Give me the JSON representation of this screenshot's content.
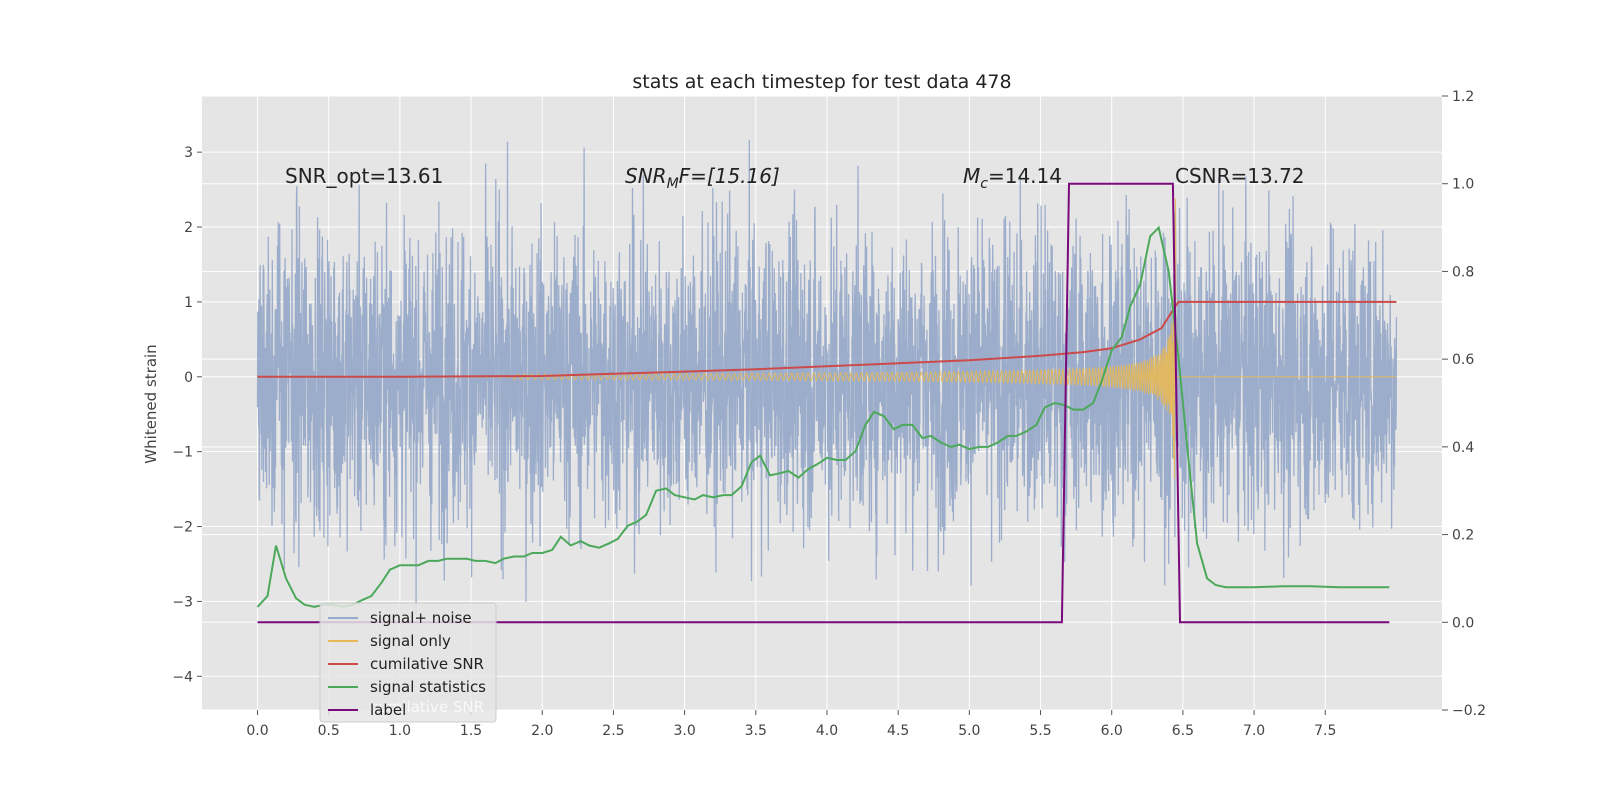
{
  "chart_data": {
    "type": "line",
    "title": "stats at each timestep for test data 478",
    "ylabel": "Whitened strain",
    "xlabel": "",
    "xlim": [
      -0.39,
      8.32
    ],
    "ylim": [
      -4.45,
      3.75
    ],
    "y2lim": [
      -0.2,
      1.2
    ],
    "x_ticks": [
      "0.0",
      "0.5",
      "1.0",
      "1.5",
      "2.0",
      "2.5",
      "3.0",
      "3.5",
      "4.0",
      "4.5",
      "5.0",
      "5.5",
      "6.0",
      "6.5",
      "7.0",
      "7.5"
    ],
    "y_ticks": [
      "3",
      "2",
      "1",
      "0",
      "−1",
      "−2",
      "−3",
      "−4"
    ],
    "y2_ticks": [
      "1.2",
      "1.0",
      "0.8",
      "0.6",
      "0.4",
      "0.2",
      "0.0",
      "−0.2"
    ],
    "grid": true,
    "legend_position": "lower-left",
    "colors": {
      "background": "#e5e5e5",
      "grid": "#ffffff",
      "signal_noise": "#98aac9",
      "signal_only": "#e8b856",
      "cumulative_snr": "#cc4a4a",
      "signal_statistics": "#4ca85a",
      "label": "#7a0a7a"
    },
    "annotations": {
      "snr_opt": "SNR_opt=13.61",
      "snr_mf_main": "SNR",
      "snr_mf_sub": "M",
      "snr_mf_rest": "F=[15.16]",
      "mc_main": "M",
      "mc_sub": "c",
      "mc_rest": "=14.14",
      "csnr": "CSNR=13.72",
      "legend_ghost": "cumilative SNR"
    },
    "series": [
      {
        "name": "signal+ noise",
        "color": "#98aac9",
        "noise_std": 1.0,
        "t_start": 0.0,
        "t_end": 8.0
      },
      {
        "name": "signal only",
        "color": "#e8b856",
        "peak_amplitude": 2.6,
        "merger_time": 6.45
      },
      {
        "name": "cumilative SNR",
        "x": [
          0.0,
          1.0,
          2.0,
          2.5,
          3.0,
          3.5,
          4.0,
          4.5,
          5.0,
          5.5,
          5.8,
          6.0,
          6.2,
          6.35,
          6.45,
          6.47,
          8.0
        ],
        "y": [
          0.0,
          0.0,
          0.01,
          0.04,
          0.07,
          0.1,
          0.14,
          0.18,
          0.22,
          0.28,
          0.33,
          0.38,
          0.5,
          0.65,
          0.95,
          1.0,
          1.0
        ]
      },
      {
        "name": "signal statistics",
        "axis": "right",
        "x": [
          0.0,
          0.07,
          0.13,
          0.2,
          0.27,
          0.33,
          0.4,
          0.47,
          0.53,
          0.6,
          0.67,
          0.73,
          0.8,
          0.87,
          0.93,
          1.0,
          1.07,
          1.13,
          1.2,
          1.27,
          1.33,
          1.4,
          1.47,
          1.53,
          1.6,
          1.67,
          1.73,
          1.8,
          1.87,
          1.93,
          2.0,
          2.07,
          2.13,
          2.2,
          2.27,
          2.33,
          2.4,
          2.47,
          2.53,
          2.6,
          2.67,
          2.73,
          2.8,
          2.87,
          2.93,
          3.0,
          3.07,
          3.13,
          3.2,
          3.27,
          3.33,
          3.4,
          3.47,
          3.53,
          3.6,
          3.67,
          3.73,
          3.8,
          3.87,
          3.93,
          4.0,
          4.07,
          4.13,
          4.2,
          4.27,
          4.33,
          4.4,
          4.47,
          4.53,
          4.6,
          4.67,
          4.73,
          4.8,
          4.87,
          4.93,
          5.0,
          5.07,
          5.13,
          5.2,
          5.27,
          5.33,
          5.4,
          5.47,
          5.53,
          5.6,
          5.67,
          5.73,
          5.8,
          5.87,
          5.93,
          6.0,
          6.07,
          6.13,
          6.2,
          6.27,
          6.33,
          6.4,
          6.47,
          6.53,
          6.6,
          6.67,
          6.73,
          6.8,
          6.9,
          7.0,
          7.2,
          7.4,
          7.6,
          7.8,
          7.95
        ],
        "y": [
          0.035,
          0.06,
          0.175,
          0.1,
          0.055,
          0.04,
          0.035,
          0.04,
          0.04,
          0.035,
          0.04,
          0.05,
          0.06,
          0.09,
          0.12,
          0.13,
          0.13,
          0.13,
          0.14,
          0.14,
          0.145,
          0.145,
          0.145,
          0.14,
          0.14,
          0.135,
          0.145,
          0.15,
          0.15,
          0.158,
          0.158,
          0.165,
          0.195,
          0.175,
          0.185,
          0.175,
          0.17,
          0.18,
          0.19,
          0.22,
          0.23,
          0.245,
          0.3,
          0.305,
          0.29,
          0.285,
          0.28,
          0.29,
          0.285,
          0.29,
          0.29,
          0.31,
          0.365,
          0.38,
          0.335,
          0.34,
          0.345,
          0.33,
          0.35,
          0.36,
          0.375,
          0.37,
          0.37,
          0.39,
          0.45,
          0.48,
          0.47,
          0.44,
          0.45,
          0.45,
          0.42,
          0.425,
          0.41,
          0.4,
          0.405,
          0.395,
          0.4,
          0.4,
          0.41,
          0.425,
          0.425,
          0.435,
          0.45,
          0.49,
          0.5,
          0.495,
          0.485,
          0.485,
          0.5,
          0.55,
          0.62,
          0.65,
          0.72,
          0.77,
          0.88,
          0.9,
          0.8,
          0.6,
          0.4,
          0.18,
          0.1,
          0.085,
          0.08,
          0.08,
          0.08,
          0.082,
          0.082,
          0.08,
          0.08,
          0.08
        ]
      },
      {
        "name": "label",
        "axis": "right",
        "x": [
          0.0,
          5.65,
          5.7,
          6.43,
          6.48,
          7.95
        ],
        "y": [
          0.0,
          0.0,
          1.0,
          1.0,
          0.0,
          0.0
        ]
      }
    ]
  }
}
